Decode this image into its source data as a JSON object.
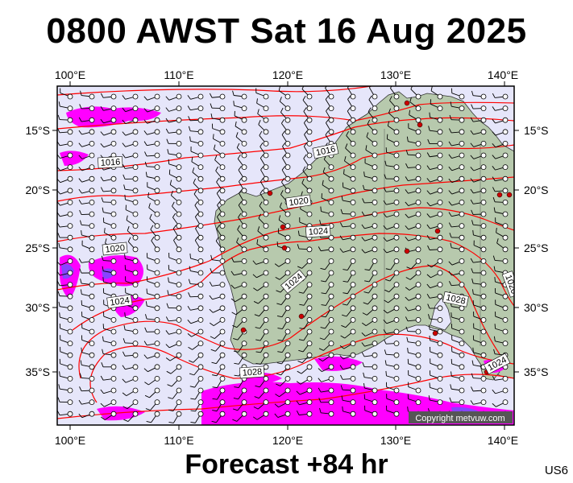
{
  "title": "0800 AWST Sat 16 Aug 2025",
  "footer": "Forecast +84 hr",
  "product_code": "US6",
  "copyright": "Copyright metvuw.com",
  "lon_labels": [
    "100°E",
    "110°E",
    "120°E",
    "130°E",
    "140°E"
  ],
  "lat_labels": [
    "15°S",
    "20°S",
    "25°S",
    "30°S",
    "35°S"
  ],
  "isobar_labels": [
    "1016",
    "1016",
    "1020",
    "1020",
    "1024",
    "1024",
    "1024",
    "1028",
    "1028",
    "1024",
    "1020"
  ],
  "colors": {
    "ocean": "#e6e6fa",
    "land": "#b7c9ad",
    "isobar": "#ff0000",
    "rain_light": "#ff00ff",
    "rain_heavy": "#8844ff",
    "station": "#cc0000"
  },
  "map_extent": {
    "lon": [
      99,
      141
    ],
    "lat": [
      -39,
      -11
    ]
  }
}
